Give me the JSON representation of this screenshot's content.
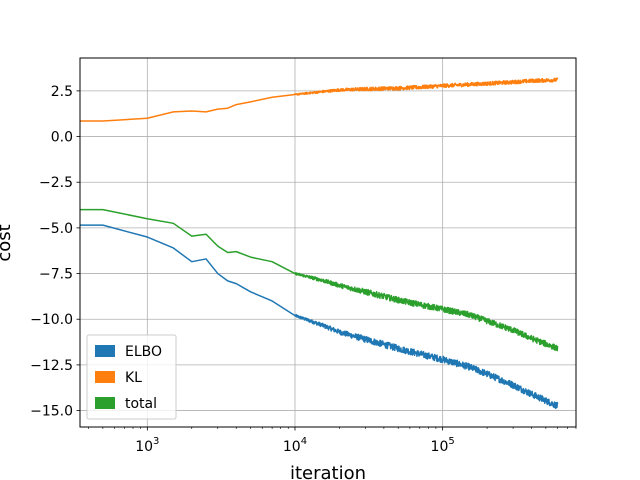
{
  "chart_data": {
    "type": "line",
    "title": "",
    "xlabel": "iteration",
    "ylabel": "cost",
    "xscale": "log",
    "xlim": [
      350,
      800000
    ],
    "ylim": [
      -15.9,
      4.3
    ],
    "grid": true,
    "legend_position": "lower-left",
    "x_ticks": [
      {
        "value": 1000,
        "base": "10",
        "exp": "3"
      },
      {
        "value": 10000,
        "base": "10",
        "exp": "4"
      },
      {
        "value": 100000,
        "base": "10",
        "exp": "5"
      }
    ],
    "y_ticks": [
      {
        "value": 2.5,
        "label": "2.5"
      },
      {
        "value": 0.0,
        "label": "0.0"
      },
      {
        "value": -2.5,
        "label": "−2.5"
      },
      {
        "value": -5.0,
        "label": "−5.0"
      },
      {
        "value": -7.5,
        "label": "−7.5"
      },
      {
        "value": -10.0,
        "label": "−10.0"
      },
      {
        "value": -12.5,
        "label": "−12.5"
      },
      {
        "value": -15.0,
        "label": "−15.0"
      }
    ],
    "series": [
      {
        "name": "ELBO",
        "color": "#1f77b4",
        "points": [
          [
            350,
            -4.85
          ],
          [
            500,
            -4.85
          ],
          [
            1000,
            -5.5
          ],
          [
            1500,
            -6.1
          ],
          [
            2000,
            -6.85
          ],
          [
            2500,
            -6.7
          ],
          [
            3000,
            -7.5
          ],
          [
            3500,
            -7.9
          ],
          [
            4000,
            -8.05
          ],
          [
            5000,
            -8.5
          ],
          [
            7000,
            -9.0
          ],
          [
            10000,
            -9.8
          ],
          [
            15000,
            -10.3
          ],
          [
            20000,
            -10.7
          ],
          [
            30000,
            -11.1
          ],
          [
            50000,
            -11.6
          ],
          [
            70000,
            -11.9
          ],
          [
            100000,
            -12.2
          ],
          [
            150000,
            -12.6
          ],
          [
            200000,
            -13.0
          ],
          [
            300000,
            -13.6
          ],
          [
            400000,
            -14.1
          ],
          [
            600000,
            -14.75
          ]
        ],
        "noise": 0.18
      },
      {
        "name": "KL",
        "color": "#ff7f0e",
        "points": [
          [
            350,
            0.85
          ],
          [
            500,
            0.85
          ],
          [
            1000,
            1.0
          ],
          [
            1500,
            1.35
          ],
          [
            2000,
            1.4
          ],
          [
            2500,
            1.35
          ],
          [
            3000,
            1.5
          ],
          [
            3500,
            1.55
          ],
          [
            4000,
            1.75
          ],
          [
            5000,
            1.9
          ],
          [
            7000,
            2.15
          ],
          [
            10000,
            2.3
          ],
          [
            15000,
            2.45
          ],
          [
            20000,
            2.55
          ],
          [
            30000,
            2.6
          ],
          [
            50000,
            2.65
          ],
          [
            70000,
            2.7
          ],
          [
            100000,
            2.78
          ],
          [
            150000,
            2.85
          ],
          [
            200000,
            2.9
          ],
          [
            300000,
            2.98
          ],
          [
            400000,
            3.05
          ],
          [
            600000,
            3.1
          ]
        ],
        "noise": 0.1
      },
      {
        "name": "total",
        "color": "#2ca02c",
        "points": [
          [
            350,
            -4.0
          ],
          [
            500,
            -4.0
          ],
          [
            1000,
            -4.5
          ],
          [
            1500,
            -4.75
          ],
          [
            2000,
            -5.45
          ],
          [
            2500,
            -5.35
          ],
          [
            3000,
            -6.0
          ],
          [
            3500,
            -6.35
          ],
          [
            4000,
            -6.3
          ],
          [
            5000,
            -6.6
          ],
          [
            7000,
            -6.85
          ],
          [
            10000,
            -7.5
          ],
          [
            15000,
            -7.85
          ],
          [
            20000,
            -8.15
          ],
          [
            30000,
            -8.5
          ],
          [
            50000,
            -8.95
          ],
          [
            70000,
            -9.2
          ],
          [
            100000,
            -9.45
          ],
          [
            150000,
            -9.75
          ],
          [
            200000,
            -10.1
          ],
          [
            300000,
            -10.6
          ],
          [
            400000,
            -11.05
          ],
          [
            600000,
            -11.6
          ]
        ],
        "noise": 0.16
      }
    ]
  }
}
